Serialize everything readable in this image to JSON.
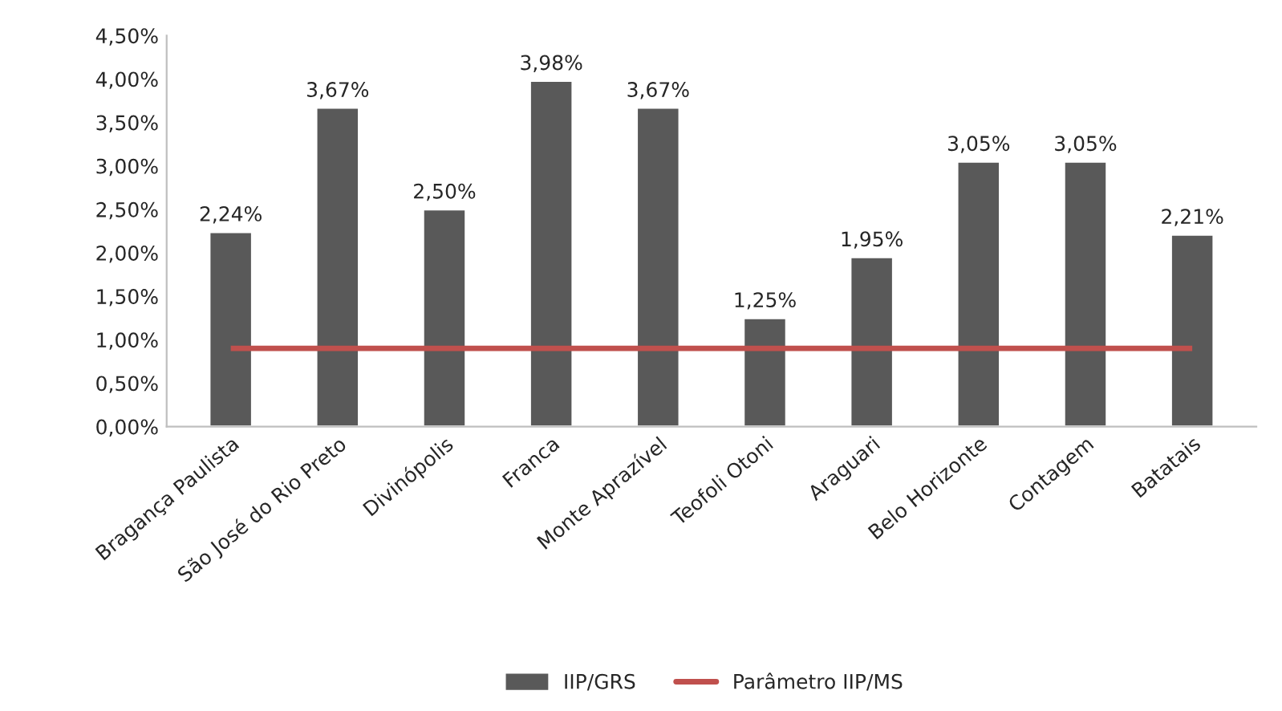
{
  "chart_data": {
    "type": "bar",
    "categories": [
      "Bragança Paulista",
      "São José do Rio Preto",
      "Divinópolis",
      "Franca",
      "Monte Aprazível",
      "Teofoli Otoni",
      "Araguari",
      "Belo Horizonte",
      "Contagem",
      "Batatais"
    ],
    "series": [
      {
        "name": "IIP/GRS",
        "color": "#595959",
        "values": [
          2.24,
          3.67,
          2.5,
          3.98,
          3.67,
          1.25,
          1.95,
          3.05,
          3.05,
          2.21
        ],
        "value_labels": [
          "2,24%",
          "3,67%",
          "2,50%",
          "3,98%",
          "3,67%",
          "1,25%",
          "1,95%",
          "3,05%",
          "3,05%",
          "2,21%"
        ]
      },
      {
        "name": "Parâmetro IIP/MS",
        "type": "line",
        "color": "#c0504d",
        "values": [
          0.9,
          0.9,
          0.9,
          0.9,
          0.9,
          0.9,
          0.9,
          0.9,
          0.9,
          0.9
        ]
      }
    ],
    "ylim": [
      0,
      4.5
    ],
    "yticks": [
      {
        "value": 0,
        "label": "0,00%"
      },
      {
        "value": 0.5,
        "label": "0,50%"
      },
      {
        "value": 1,
        "label": "1,00%"
      },
      {
        "value": 1.5,
        "label": "1,50%"
      },
      {
        "value": 2,
        "label": "2,00%"
      },
      {
        "value": 2.5,
        "label": "2,50%"
      },
      {
        "value": 3,
        "label": "3,00%"
      },
      {
        "value": 3.5,
        "label": "3,50%"
      },
      {
        "value": 4,
        "label": "4,00%"
      },
      {
        "value": 4.5,
        "label": "4,50%"
      }
    ],
    "legend": "bottom",
    "grid": false
  }
}
